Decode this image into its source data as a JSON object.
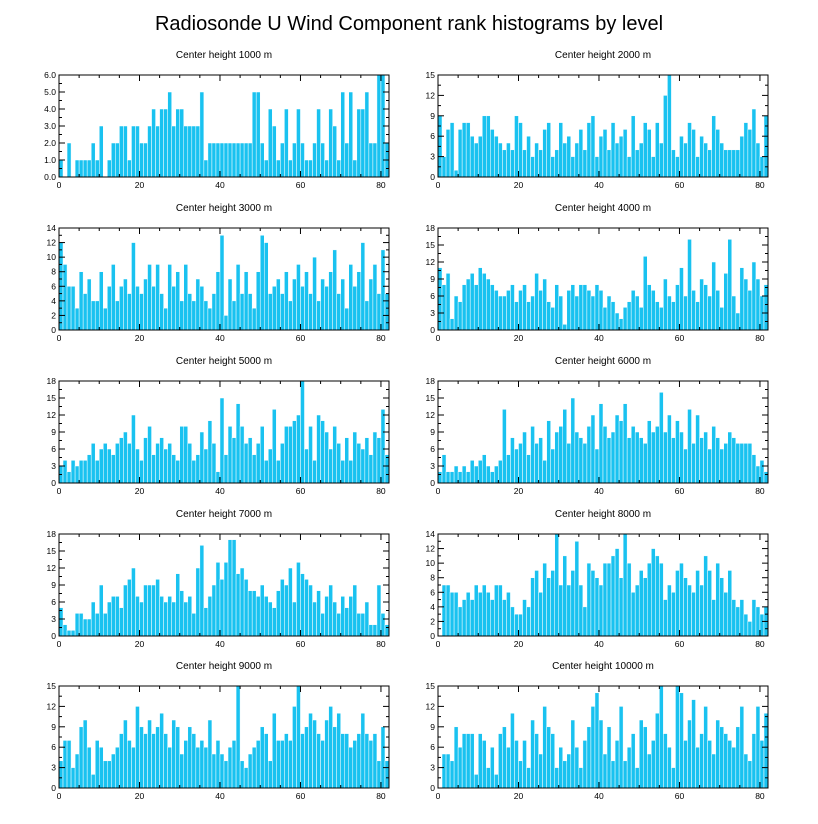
{
  "figure": {
    "title": "Radiosonde U Wind Component rank histograms by level",
    "bar_color": "#19c2f0"
  },
  "chart_data": [
    {
      "type": "bar",
      "title": "Center height 1000 m",
      "xlim": [
        0,
        82
      ],
      "xticks": [
        0,
        20,
        40,
        60,
        80
      ],
      "ylim": [
        0,
        6
      ],
      "yticks": [
        0,
        1,
        2,
        3,
        4,
        5,
        6
      ],
      "ytick_labels": [
        "0.0",
        "1.0",
        "2.0",
        "3.0",
        "4.0",
        "5.0",
        "6.0"
      ],
      "x_start": 0,
      "values": [
        1,
        0,
        2,
        0,
        1,
        1,
        1,
        1,
        2,
        1,
        3,
        0,
        1,
        2,
        2,
        3,
        3,
        1,
        3,
        3,
        2,
        2,
        3,
        4,
        3,
        4,
        4,
        5,
        3,
        4,
        4,
        3,
        3,
        3,
        3,
        5,
        1,
        2,
        2,
        2,
        2,
        2,
        2,
        2,
        2,
        2,
        2,
        2,
        5,
        5,
        2,
        1,
        4,
        3,
        1,
        2,
        4,
        1,
        2,
        4,
        2,
        1,
        1,
        2,
        4,
        2,
        1,
        4,
        3,
        1,
        5,
        2,
        5,
        1,
        4,
        4,
        5,
        2,
        2,
        6,
        6,
        2
      ]
    },
    {
      "type": "bar",
      "title": "Center height 2000 m",
      "xlim": [
        0,
        82
      ],
      "xticks": [
        0,
        20,
        40,
        60,
        80
      ],
      "ylim": [
        0,
        15
      ],
      "yticks": [
        0,
        3,
        6,
        9,
        12,
        15
      ],
      "x_start": 0,
      "values": [
        9,
        3,
        7,
        8,
        1,
        7,
        8,
        8,
        6,
        5,
        6,
        9,
        9,
        7,
        6,
        5,
        4,
        5,
        4,
        9,
        8,
        4,
        6,
        3,
        5,
        4,
        7,
        8,
        3,
        4,
        8,
        5,
        6,
        3,
        5,
        7,
        4,
        8,
        9,
        3,
        6,
        7,
        4,
        8,
        5,
        6,
        7,
        3,
        9,
        4,
        5,
        8,
        7,
        3,
        8,
        5,
        12,
        15,
        4,
        3,
        6,
        5,
        8,
        7,
        3,
        6,
        5,
        4,
        9,
        7,
        5,
        4,
        4,
        4,
        4,
        6,
        8,
        7,
        10,
        5,
        3,
        9
      ]
    },
    {
      "type": "bar",
      "title": "Center height 3000 m",
      "xlim": [
        0,
        82
      ],
      "xticks": [
        0,
        20,
        40,
        60,
        80
      ],
      "ylim": [
        0,
        14
      ],
      "yticks": [
        0,
        2,
        4,
        6,
        8,
        10,
        12,
        14
      ],
      "x_start": 0,
      "values": [
        12,
        9,
        6,
        6,
        3,
        8,
        5,
        7,
        4,
        4,
        8,
        3,
        6,
        9,
        4,
        6,
        7,
        5,
        12,
        6,
        5,
        7,
        9,
        6,
        9,
        5,
        3,
        9,
        6,
        8,
        4,
        9,
        5,
        4,
        7,
        6,
        4,
        3,
        5,
        8,
        13,
        2,
        7,
        4,
        9,
        5,
        8,
        5,
        3,
        8,
        13,
        12,
        5,
        6,
        7,
        5,
        8,
        4,
        7,
        9,
        6,
        8,
        5,
        10,
        4,
        7,
        6,
        8,
        11,
        5,
        7,
        3,
        9,
        6,
        8,
        12,
        4,
        7,
        9,
        5,
        11,
        5
      ]
    },
    {
      "type": "bar",
      "title": "Center height 4000 m",
      "xlim": [
        0,
        82
      ],
      "xticks": [
        0,
        20,
        40,
        60,
        80
      ],
      "ylim": [
        0,
        18
      ],
      "yticks": [
        0,
        3,
        6,
        9,
        12,
        15,
        18
      ],
      "x_start": 0,
      "values": [
        11,
        8,
        10,
        2,
        6,
        5,
        8,
        9,
        10,
        8,
        11,
        10,
        9,
        8,
        7,
        6,
        6,
        7,
        8,
        5,
        7,
        8,
        5,
        6,
        10,
        7,
        9,
        5,
        4,
        8,
        6,
        1,
        7,
        8,
        6,
        8,
        8,
        7,
        6,
        8,
        7,
        4,
        6,
        5,
        3,
        2,
        4,
        5,
        7,
        6,
        4,
        13,
        8,
        7,
        5,
        4,
        9,
        6,
        5,
        8,
        11,
        6,
        16,
        7,
        5,
        9,
        8,
        6,
        12,
        7,
        4,
        10,
        16,
        6,
        3,
        11,
        9,
        7,
        12,
        9,
        6,
        8
      ]
    },
    {
      "type": "bar",
      "title": "Center height 5000 m",
      "xlim": [
        0,
        82
      ],
      "xticks": [
        0,
        20,
        40,
        60,
        80
      ],
      "ylim": [
        0,
        18
      ],
      "yticks": [
        0,
        3,
        6,
        9,
        12,
        15,
        18
      ],
      "x_start": 0,
      "values": [
        3,
        4,
        2,
        4,
        3,
        4,
        4,
        5,
        7,
        4,
        6,
        7,
        6,
        5,
        7,
        8,
        9,
        7,
        12,
        6,
        4,
        8,
        10,
        5,
        7,
        8,
        6,
        7,
        5,
        4,
        10,
        10,
        7,
        4,
        5,
        9,
        6,
        11,
        7,
        2,
        15,
        5,
        10,
        8,
        14,
        10,
        7,
        8,
        5,
        7,
        10,
        4,
        6,
        13,
        4,
        7,
        10,
        10,
        11,
        12,
        18,
        6,
        10,
        4,
        12,
        11,
        9,
        6,
        10,
        7,
        4,
        8,
        4,
        9,
        7,
        6,
        8,
        5,
        9,
        8,
        13,
        5
      ]
    },
    {
      "type": "bar",
      "title": "Center height 6000 m",
      "xlim": [
        0,
        82
      ],
      "xticks": [
        0,
        20,
        40,
        60,
        80
      ],
      "ylim": [
        0,
        18
      ],
      "yticks": [
        0,
        3,
        6,
        9,
        12,
        15,
        18
      ],
      "x_start": 0,
      "values": [
        2,
        5,
        2,
        2,
        3,
        2,
        3,
        2,
        4,
        3,
        4,
        5,
        3,
        2,
        3,
        4,
        13,
        5,
        8,
        6,
        7,
        9,
        5,
        10,
        7,
        8,
        4,
        11,
        6,
        9,
        10,
        13,
        7,
        15,
        9,
        8,
        7,
        10,
        12,
        6,
        14,
        10,
        8,
        9,
        12,
        11,
        14,
        8,
        10,
        9,
        8,
        7,
        11,
        9,
        10,
        16,
        9,
        12,
        8,
        11,
        9,
        6,
        13,
        7,
        12,
        8,
        9,
        6,
        10,
        8,
        6,
        7,
        9,
        8,
        7,
        7,
        7,
        7,
        5,
        3,
        4,
        2
      ]
    },
    {
      "type": "bar",
      "title": "Center height 7000 m",
      "xlim": [
        0,
        82
      ],
      "xticks": [
        0,
        20,
        40,
        60,
        80
      ],
      "ylim": [
        0,
        18
      ],
      "yticks": [
        0,
        3,
        6,
        9,
        12,
        15,
        18
      ],
      "x_start": 0,
      "values": [
        5,
        2,
        1,
        1,
        4,
        4,
        3,
        3,
        6,
        4,
        9,
        4,
        6,
        7,
        7,
        5,
        9,
        10,
        12,
        7,
        6,
        9,
        9,
        9,
        10,
        7,
        6,
        7,
        6,
        11,
        8,
        6,
        7,
        4,
        12,
        16,
        5,
        7,
        9,
        13,
        10,
        13,
        17,
        17,
        11,
        12,
        10,
        8,
        8,
        7,
        9,
        7,
        6,
        5,
        8,
        10,
        9,
        12,
        6,
        13,
        11,
        10,
        9,
        6,
        8,
        4,
        7,
        9,
        6,
        4,
        7,
        5,
        7,
        9,
        4,
        4,
        6,
        2,
        2,
        9,
        4,
        2
      ]
    },
    {
      "type": "bar",
      "title": "Center height 8000 m",
      "xlim": [
        0,
        82
      ],
      "xticks": [
        0,
        20,
        40,
        60,
        80
      ],
      "ylim": [
        0,
        14
      ],
      "yticks": [
        0,
        2,
        4,
        6,
        8,
        10,
        12,
        14
      ],
      "x_start": 1,
      "values": [
        7,
        7,
        6,
        6,
        4,
        5,
        6,
        5,
        7,
        6,
        7,
        6,
        5,
        7,
        7,
        5,
        6,
        4,
        3,
        3,
        5,
        4,
        8,
        9,
        6,
        10,
        8,
        9,
        14,
        7,
        11,
        7,
        9,
        13,
        7,
        4,
        10,
        9,
        8,
        7,
        10,
        10,
        11,
        12,
        8,
        14,
        10,
        6,
        7,
        9,
        8,
        10,
        12,
        11,
        10,
        5,
        7,
        6,
        9,
        10,
        8,
        7,
        6,
        9,
        7,
        11,
        9,
        5,
        10,
        8,
        6,
        9,
        5,
        4,
        5,
        3,
        2,
        5,
        4,
        3,
        4
      ]
    },
    {
      "type": "bar",
      "title": "Center height 9000 m",
      "xlim": [
        0,
        82
      ],
      "xticks": [
        0,
        20,
        40,
        60,
        80
      ],
      "ylim": [
        0,
        15
      ],
      "yticks": [
        0,
        3,
        6,
        9,
        12,
        15
      ],
      "x_start": 0,
      "values": [
        4,
        7,
        7,
        3,
        5,
        9,
        10,
        6,
        2,
        7,
        6,
        4,
        4,
        5,
        6,
        8,
        10,
        7,
        6,
        12,
        9,
        8,
        10,
        8,
        9,
        11,
        8,
        6,
        10,
        9,
        5,
        7,
        9,
        8,
        6,
        7,
        6,
        10,
        5,
        7,
        5,
        4,
        6,
        7,
        15,
        4,
        3,
        5,
        6,
        7,
        9,
        8,
        4,
        11,
        7,
        7,
        8,
        7,
        12,
        15,
        8,
        9,
        11,
        10,
        8,
        7,
        10,
        12,
        9,
        11,
        8,
        8,
        6,
        7,
        8,
        11,
        8,
        7,
        8,
        4,
        9,
        4
      ]
    },
    {
      "type": "bar",
      "title": "Center height 10000 m",
      "xlim": [
        0,
        82
      ],
      "xticks": [
        0,
        20,
        40,
        60,
        80
      ],
      "ylim": [
        0,
        15
      ],
      "yticks": [
        0,
        3,
        6,
        9,
        12,
        15
      ],
      "x_start": 1,
      "values": [
        5,
        5,
        4,
        9,
        6,
        8,
        8,
        8,
        2,
        8,
        7,
        3,
        6,
        2,
        8,
        9,
        6,
        11,
        7,
        4,
        7,
        3,
        10,
        8,
        5,
        12,
        9,
        8,
        3,
        6,
        4,
        5,
        10,
        6,
        3,
        7,
        9,
        12,
        14,
        10,
        5,
        9,
        4,
        7,
        12,
        4,
        6,
        8,
        3,
        10,
        9,
        5,
        7,
        11,
        15,
        8,
        6,
        3,
        15,
        14,
        7,
        10,
        13,
        6,
        8,
        12,
        7,
        5,
        10,
        9,
        8,
        7,
        6,
        9,
        12,
        5,
        4,
        8,
        12,
        7,
        11
      ]
    }
  ]
}
